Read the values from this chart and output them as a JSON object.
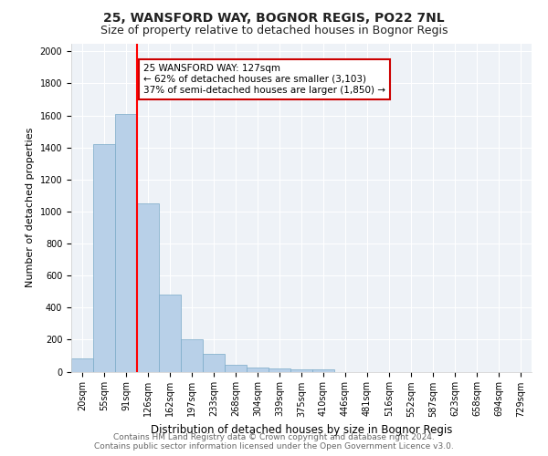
{
  "title": "25, WANSFORD WAY, BOGNOR REGIS, PO22 7NL",
  "subtitle": "Size of property relative to detached houses in Bognor Regis",
  "xlabel": "Distribution of detached houses by size in Bognor Regis",
  "ylabel": "Number of detached properties",
  "categories": [
    "20sqm",
    "55sqm",
    "91sqm",
    "126sqm",
    "162sqm",
    "197sqm",
    "233sqm",
    "268sqm",
    "304sqm",
    "339sqm",
    "375sqm",
    "410sqm",
    "446sqm",
    "481sqm",
    "516sqm",
    "552sqm",
    "587sqm",
    "623sqm",
    "658sqm",
    "694sqm",
    "729sqm"
  ],
  "values": [
    80,
    1420,
    1610,
    1050,
    480,
    200,
    110,
    40,
    25,
    20,
    15,
    15,
    0,
    0,
    0,
    0,
    0,
    0,
    0,
    0,
    0
  ],
  "bar_color": "#b8d0e8",
  "bar_edge_color": "#7aaac8",
  "red_line_index": 3,
  "red_line_label": "25 WANSFORD WAY: 127sqm",
  "annotation_line1": "← 62% of detached houses are smaller (3,103)",
  "annotation_line2": "37% of semi-detached houses are larger (1,850) →",
  "annotation_box_color": "#ffffff",
  "annotation_box_edge": "#cc0000",
  "ylim": [
    0,
    2050
  ],
  "yticks": [
    0,
    200,
    400,
    600,
    800,
    1000,
    1200,
    1400,
    1600,
    1800,
    2000
  ],
  "bg_color": "#eef2f7",
  "footer_line1": "Contains HM Land Registry data © Crown copyright and database right 2024.",
  "footer_line2": "Contains public sector information licensed under the Open Government Licence v3.0.",
  "title_fontsize": 10,
  "subtitle_fontsize": 9,
  "xlabel_fontsize": 8.5,
  "ylabel_fontsize": 8,
  "tick_fontsize": 7,
  "footer_fontsize": 6.5
}
